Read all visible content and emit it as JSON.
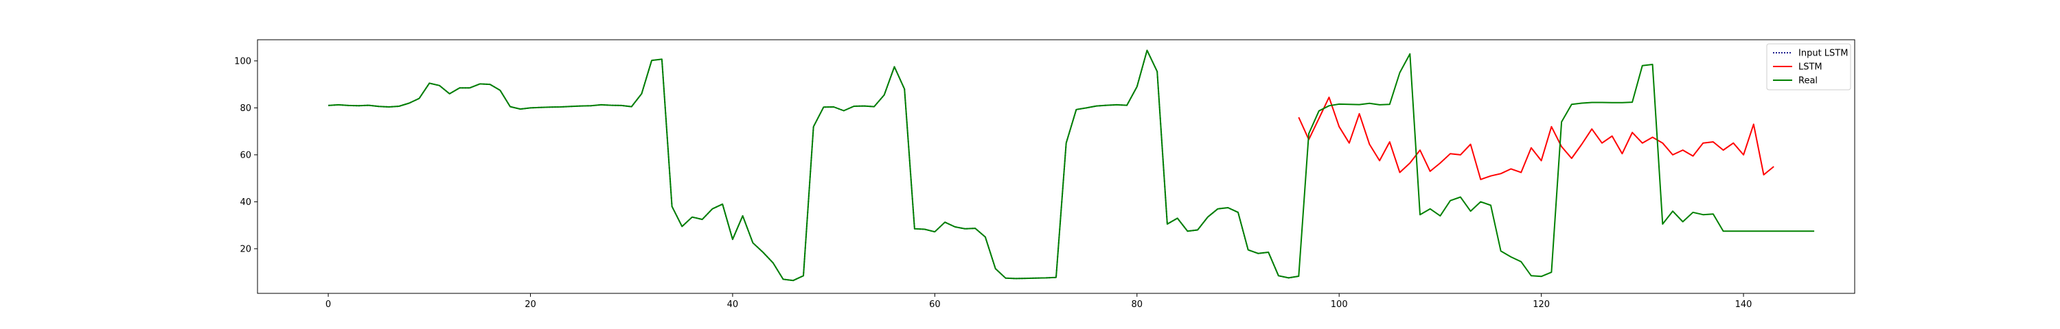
{
  "chart_data": {
    "type": "line",
    "title": "",
    "xlabel": "",
    "ylabel": "",
    "xlim": [
      -7,
      151
    ],
    "ylim": [
      1,
      109
    ],
    "xticks": [
      0,
      20,
      40,
      60,
      80,
      100,
      120,
      140
    ],
    "yticks": [
      20,
      40,
      60,
      80,
      100
    ],
    "grid": false,
    "legend_position": "upper right",
    "series": [
      {
        "name": "Real",
        "color": "#008000",
        "style": "solid",
        "x_start": 0,
        "values": [
          81,
          81.3,
          81,
          80.9,
          81.1,
          80.6,
          80.4,
          80.7,
          82,
          84,
          90.5,
          89.5,
          86,
          88.5,
          88.5,
          90.2,
          90,
          87.5,
          80.5,
          79.5,
          80,
          80.2,
          80.3,
          80.4,
          80.6,
          80.8,
          80.9,
          81.3,
          81.1,
          81,
          80.5,
          86,
          100.2,
          100.7,
          38,
          29.5,
          33.5,
          32.5,
          37,
          39,
          24,
          34,
          22.5,
          18.5,
          14,
          7,
          6.5,
          8.5,
          72,
          80.3,
          80.4,
          78.8,
          80.7,
          80.8,
          80.5,
          85.5,
          97.5,
          88,
          28.5,
          28.3,
          27.2,
          31.3,
          29.3,
          28.5,
          28.7,
          25,
          11.5,
          7.5,
          7.3,
          7.4,
          7.5,
          7.6,
          7.8,
          65,
          79.3,
          80,
          80.8,
          81.1,
          81.3,
          81.1,
          89,
          104.5,
          95.5,
          30.5,
          33,
          27.5,
          28,
          33.5,
          37,
          37.5,
          35.5,
          19.5,
          18,
          18.5,
          8.5,
          7.6,
          8.3,
          69,
          78.7,
          80.9,
          81.6,
          81.5,
          81.4,
          81.9,
          81.3,
          81.5,
          95,
          103,
          34.5,
          37,
          34,
          40.5,
          42,
          36,
          40,
          38.5,
          19,
          16.5,
          14.5,
          8.5,
          8.2,
          10,
          74,
          81.5,
          82,
          82.3,
          82.3,
          82.2,
          82.2,
          82.4,
          98,
          98.5,
          30.5,
          36,
          31.5,
          35.5,
          34.5,
          34.8,
          27.5,
          27.5,
          27.5,
          27.5,
          27.5,
          27.5,
          27.5,
          27.5,
          27.5,
          27.5
        ]
      },
      {
        "name": "LSTM",
        "color": "#ff0000",
        "style": "solid",
        "x_start": 96,
        "values": [
          76,
          66.5,
          75.5,
          84.5,
          72,
          65,
          77.5,
          64.5,
          57.5,
          65.5,
          52.5,
          56.5,
          62,
          53,
          56.5,
          60.5,
          60,
          64.5,
          49.5,
          51,
          52,
          54,
          52.5,
          63,
          57.5,
          72,
          63.5,
          58.5,
          64.5,
          71,
          65,
          68,
          60.5,
          69.5,
          65,
          67.5,
          65,
          60,
          62,
          59.5,
          65,
          65.5,
          62,
          65,
          60,
          73,
          51.5,
          55
        ]
      },
      {
        "name": "Input LSTM",
        "color": "#1f1f8f",
        "style": "dotted",
        "x_start": 0,
        "values": [
          81,
          81.3,
          81,
          80.9,
          81.1,
          80.6,
          80.4,
          80.7,
          82,
          84,
          90.5,
          89.5,
          86,
          88.5,
          88.5,
          90.2,
          90,
          87.5,
          80.5,
          79.5,
          80,
          80.2,
          80.3,
          80.4,
          80.6,
          80.8,
          80.9,
          81.3,
          81.1,
          81,
          80.5,
          86,
          100.2,
          100.7,
          38,
          29.5,
          33.5,
          32.5,
          37,
          39,
          24,
          34,
          22.5,
          18.5,
          14,
          7,
          6.5,
          8.5,
          72,
          80.3,
          80.4,
          78.8,
          80.7,
          80.8,
          80.5,
          85.5,
          97.5,
          88,
          28.5,
          28.3,
          27.2,
          31.3,
          29.3,
          28.5,
          28.7,
          25,
          11.5,
          7.5,
          7.3,
          7.4,
          7.5,
          7.6,
          7.8,
          65,
          79.3,
          80,
          80.8,
          81.1,
          81.3,
          81.1,
          89,
          104.5,
          95.5,
          30.5,
          33,
          27.5,
          28,
          33.5,
          37,
          37.5,
          35.5,
          19.5,
          18,
          18.5,
          8.5,
          7.6,
          8.3
        ]
      }
    ],
    "legend": [
      {
        "label": "Input LSTM",
        "color": "#1f1f8f",
        "style": "dotted"
      },
      {
        "label": "LSTM",
        "color": "#ff0000",
        "style": "solid"
      },
      {
        "label": "Real",
        "color": "#008000",
        "style": "solid"
      }
    ]
  }
}
